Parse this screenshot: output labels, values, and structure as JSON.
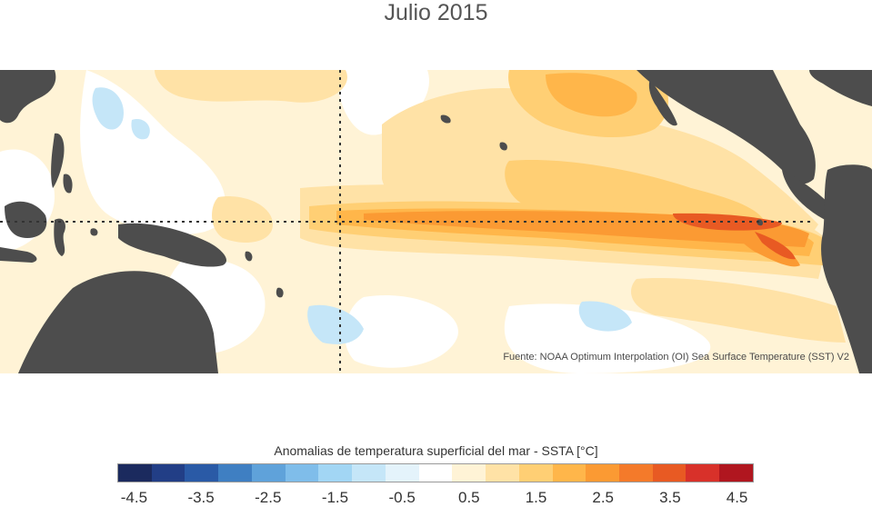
{
  "title": "Julio 2015",
  "source": "Fuente: NOAA Optimum Interpolation (OI) Sea Surface Temperature (SST) V2",
  "legend": {
    "title": "Anomalias de temperatura superficial del mar - SSTA  [°C]",
    "colors": [
      "#1b2a5e",
      "#223e86",
      "#2a5aa6",
      "#3f7fc2",
      "#5fa2da",
      "#7fbdea",
      "#a2d6f4",
      "#c5e6f8",
      "#e4f3fb",
      "#ffffff",
      "#fff3d6",
      "#ffe2a6",
      "#ffcf74",
      "#ffb64a",
      "#fb9a33",
      "#f47a2a",
      "#e85a23",
      "#d8312a",
      "#b0161f"
    ],
    "ticks": [
      {
        "label": "-4.5",
        "value": -4.5
      },
      {
        "label": "-3.5",
        "value": -3.5
      },
      {
        "label": "-2.5",
        "value": -2.5
      },
      {
        "label": "-1.5",
        "value": -1.5
      },
      {
        "label": "-0.5",
        "value": -0.5
      },
      {
        "label": "0.5",
        "value": 0.5
      },
      {
        "label": "1.5",
        "value": 1.5
      },
      {
        "label": "2.5",
        "value": 2.5
      },
      {
        "label": "3.5",
        "value": 3.5
      },
      {
        "label": "4.5",
        "value": 4.5
      }
    ],
    "range": [
      -4.75,
      4.75
    ]
  },
  "colors": {
    "land": "#4d4d4d",
    "ocean_base": "#ffffff",
    "reference_lines": "#333333"
  }
}
